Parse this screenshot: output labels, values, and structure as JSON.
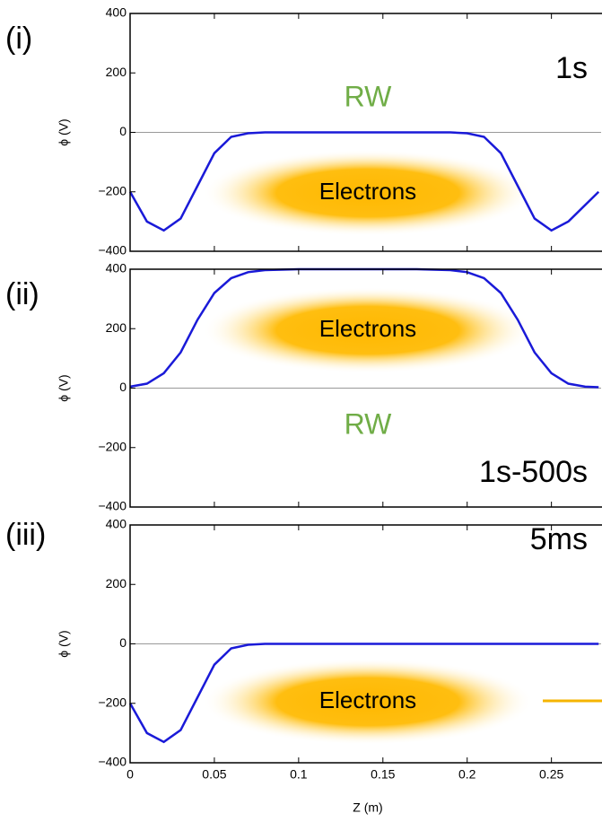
{
  "chart_data": [
    {
      "type": "line",
      "panel_label": "(i)",
      "time_label": "1s",
      "annotations": [
        "RW",
        "Electrons"
      ],
      "ylabel": "ϕ (V)",
      "x": [
        0,
        0.01,
        0.02,
        0.03,
        0.04,
        0.05,
        0.06,
        0.07,
        0.08,
        0.1,
        0.13,
        0.17,
        0.19,
        0.2,
        0.21,
        0.22,
        0.23,
        0.24,
        0.25,
        0.26,
        0.278
      ],
      "series": [
        {
          "color": "#1a1ad8",
          "values": [
            -200,
            -300,
            -330,
            -290,
            -180,
            -70,
            -15,
            -3,
            0,
            0,
            0,
            0,
            0,
            -3,
            -15,
            -70,
            -180,
            -290,
            -330,
            -300,
            -200
          ]
        }
      ],
      "xlim": [
        0,
        0.28
      ],
      "ylim": [
        -400,
        400
      ],
      "yticks": [
        {
          "value": -400,
          "label": "−400"
        },
        {
          "value": -200,
          "label": "−200"
        },
        0,
        200,
        400
      ]
    },
    {
      "type": "line",
      "panel_label": "(ii)",
      "time_label": "1s-500s",
      "annotations": [
        "Electrons",
        "RW"
      ],
      "ylabel": "ϕ (V)",
      "x": [
        0,
        0.01,
        0.02,
        0.03,
        0.04,
        0.05,
        0.06,
        0.07,
        0.08,
        0.1,
        0.13,
        0.17,
        0.19,
        0.2,
        0.21,
        0.22,
        0.23,
        0.24,
        0.25,
        0.26,
        0.27,
        0.278
      ],
      "series": [
        {
          "color": "#1a1ad8",
          "values": [
            5,
            15,
            50,
            120,
            230,
            320,
            370,
            390,
            397,
            400,
            400,
            400,
            397,
            390,
            370,
            320,
            230,
            120,
            50,
            15,
            5,
            3
          ]
        }
      ],
      "xlim": [
        0,
        0.28
      ],
      "ylim": [
        -400,
        400
      ],
      "yticks": [
        {
          "value": -400,
          "label": "−400"
        },
        {
          "value": -200,
          "label": "−200"
        },
        0,
        200,
        400
      ]
    },
    {
      "type": "line",
      "panel_label": "(iii)",
      "time_label": "5ms",
      "annotations": [
        "Electrons"
      ],
      "ylabel": "ϕ (V)",
      "xlabel": "Z (m)",
      "x": [
        0,
        0.01,
        0.02,
        0.03,
        0.04,
        0.05,
        0.06,
        0.07,
        0.08,
        0.1,
        0.15,
        0.2,
        0.25,
        0.278
      ],
      "series": [
        {
          "color": "#1a1ad8",
          "values": [
            -200,
            -300,
            -330,
            -290,
            -180,
            -70,
            -15,
            -3,
            0,
            0,
            0,
            0,
            0,
            0
          ]
        }
      ],
      "xlim": [
        0,
        0.28
      ],
      "ylim": [
        -400,
        400
      ],
      "xticks": [
        0,
        0.05,
        0.1,
        0.15,
        0.2,
        0.25
      ],
      "yticks": [
        {
          "value": -400,
          "label": "−400"
        },
        {
          "value": -200,
          "label": "−200"
        },
        0,
        200,
        400
      ]
    }
  ]
}
